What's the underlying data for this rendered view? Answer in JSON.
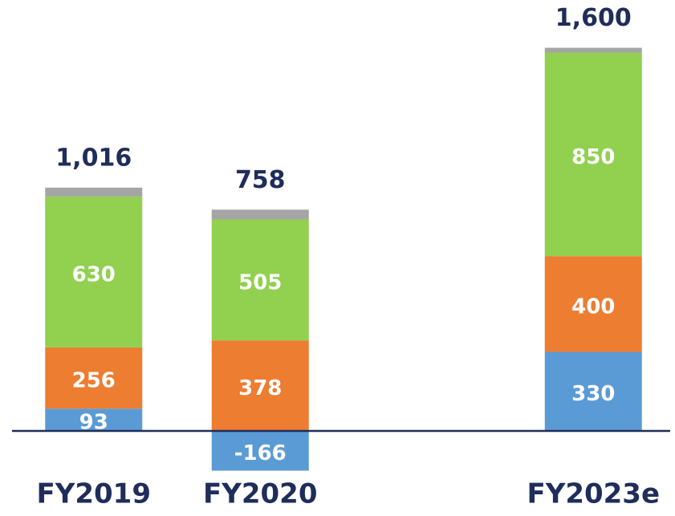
{
  "chart_data": {
    "type": "stacked_bar",
    "categories": [
      "FY2019",
      "FY2020",
      null,
      "FY2023e"
    ],
    "series": [
      {
        "color": "#5b9bd5",
        "values": [
          93,
          -166,
          null,
          330
        ],
        "data_labels": true
      },
      {
        "color": "#ed7d31",
        "values": [
          256,
          378,
          null,
          400
        ],
        "data_labels": true
      },
      {
        "color": "#92d050",
        "values": [
          630,
          505,
          null,
          850
        ],
        "data_labels": true
      },
      {
        "color": "#a5a5a5",
        "values": [
          37,
          41,
          null,
          20
        ],
        "data_labels": false
      }
    ],
    "totals": [
      1016,
      758,
      null,
      1600
    ],
    "total_labels": [
      "1,016",
      "758",
      null,
      "1,600"
    ],
    "ylim": [
      -300,
      1700
    ],
    "axis_color": "#1f2d5a"
  }
}
